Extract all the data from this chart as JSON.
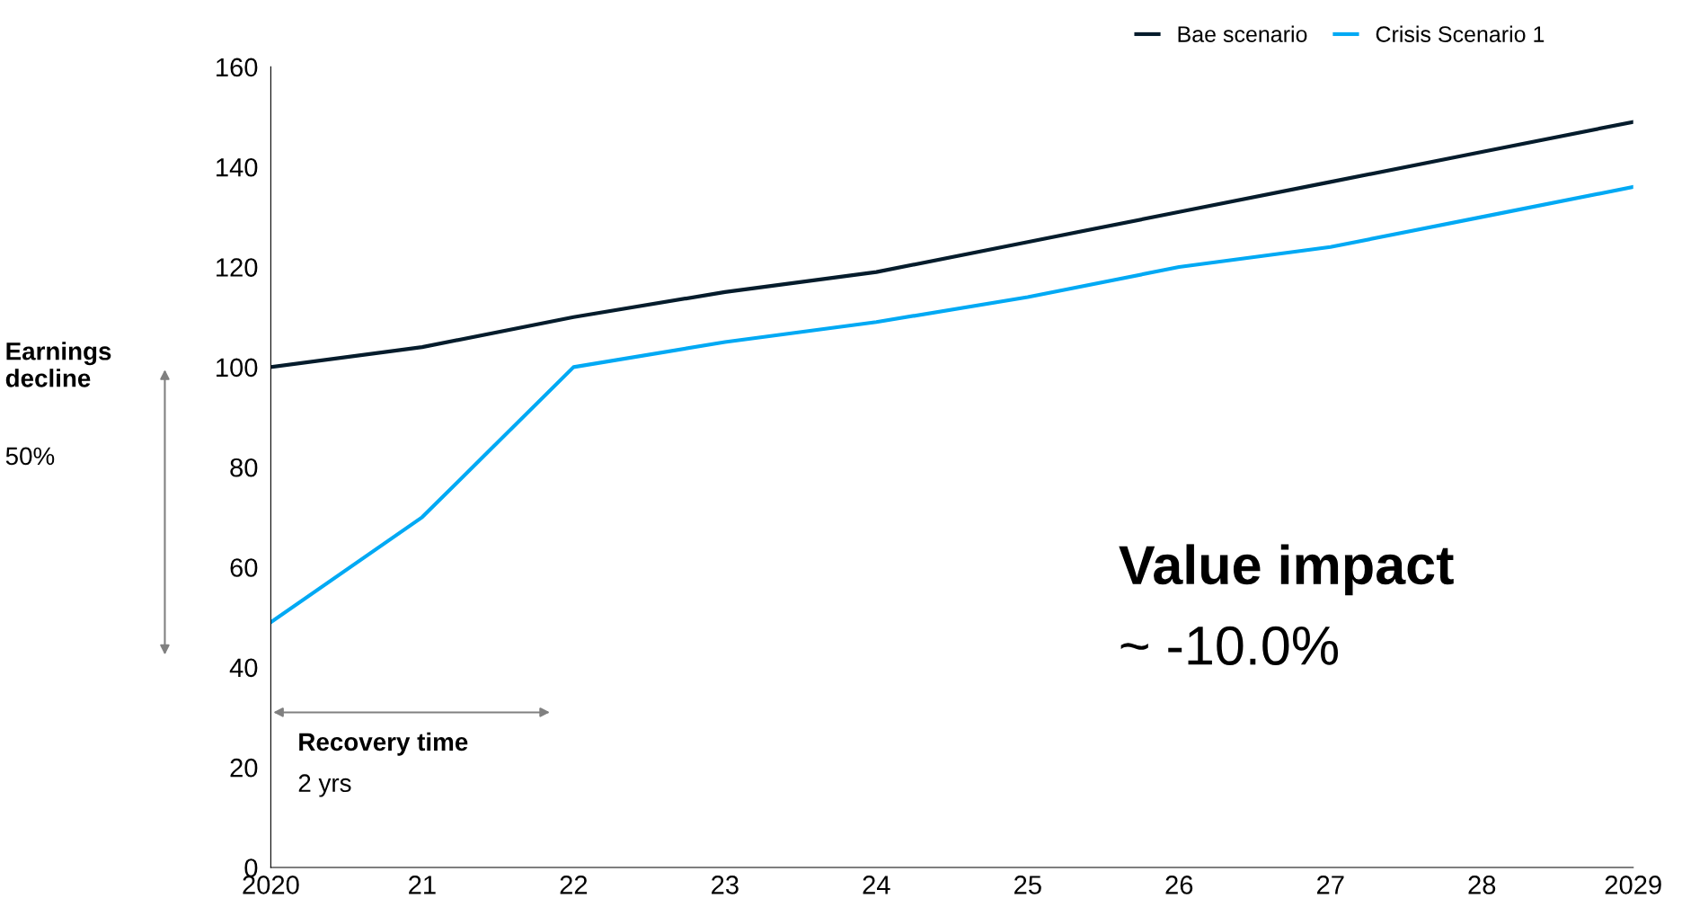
{
  "chart_data": {
    "type": "line",
    "categories": [
      "2020",
      "21",
      "22",
      "23",
      "24",
      "25",
      "26",
      "27",
      "28",
      "2029"
    ],
    "series": [
      {
        "name": "Bae scenario",
        "color": "#051c2c",
        "values": [
          100,
          104,
          110,
          115,
          119,
          125,
          131,
          137,
          143,
          149
        ]
      },
      {
        "name": "Crisis Scenario 1",
        "color": "#00a9f4",
        "values": [
          49,
          70,
          100,
          105,
          109,
          114,
          120,
          124,
          130,
          136
        ]
      }
    ],
    "ylim": [
      0,
      160
    ],
    "yticks": [
      0,
      20,
      40,
      60,
      80,
      100,
      120,
      140,
      160
    ],
    "grid": false,
    "legend": "top right",
    "annotations": [
      "Earnings decline",
      "50%",
      "Recovery time",
      "2 yrs",
      "Value impact",
      "~ -10.0%"
    ]
  }
}
